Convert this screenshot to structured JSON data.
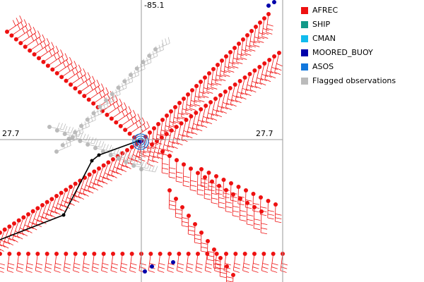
{
  "axes": {
    "top_label": "-85.1",
    "left_label": "27.7",
    "right_label": "27.7"
  },
  "legend": [
    {
      "label": "AFREC",
      "color": "#ee1111"
    },
    {
      "label": "SHIP",
      "color": "#119988"
    },
    {
      "label": "CMAN",
      "color": "#11bbee"
    },
    {
      "label": "MOORED_BUOY",
      "color": "#0000aa"
    },
    {
      "label": "ASOS",
      "color": "#1177dd"
    },
    {
      "label": "Flagged observations",
      "color": "#bbbbbb"
    }
  ]
}
